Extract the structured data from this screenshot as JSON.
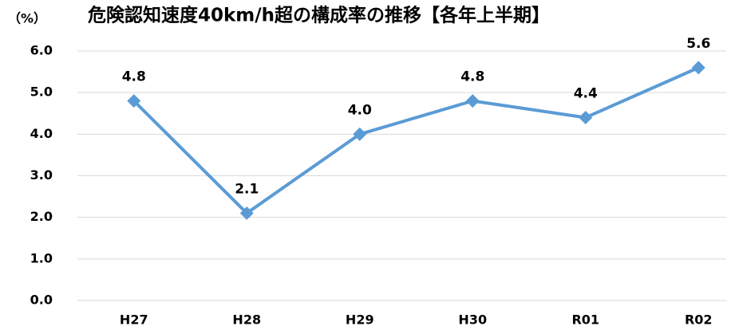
{
  "chart_data": {
    "type": "line",
    "title": "危険認知速度40km/h超の構成率の推移【各年上半期】",
    "y_label": "（%）",
    "categories": [
      "H27",
      "H28",
      "H29",
      "H30",
      "R01",
      "R02"
    ],
    "series": [
      {
        "color": "#5b9bd5",
        "values": [
          4.8,
          2.1,
          4.0,
          4.8,
          4.4,
          5.6
        ],
        "value_labels": [
          "4.8",
          "2.1",
          "4.0",
          "4.8",
          "4.4",
          "5.6"
        ]
      }
    ],
    "ylim": [
      0,
      6
    ],
    "yticks": [
      {
        "value": 0,
        "label": "0.0"
      },
      {
        "value": 1,
        "label": "1.0"
      },
      {
        "value": 2,
        "label": "2.0"
      },
      {
        "value": 3,
        "label": "3.0"
      },
      {
        "value": 4,
        "label": "4.0"
      },
      {
        "value": 5,
        "label": "5.0"
      },
      {
        "value": 6,
        "label": "6.0"
      }
    ],
    "grid": true
  }
}
